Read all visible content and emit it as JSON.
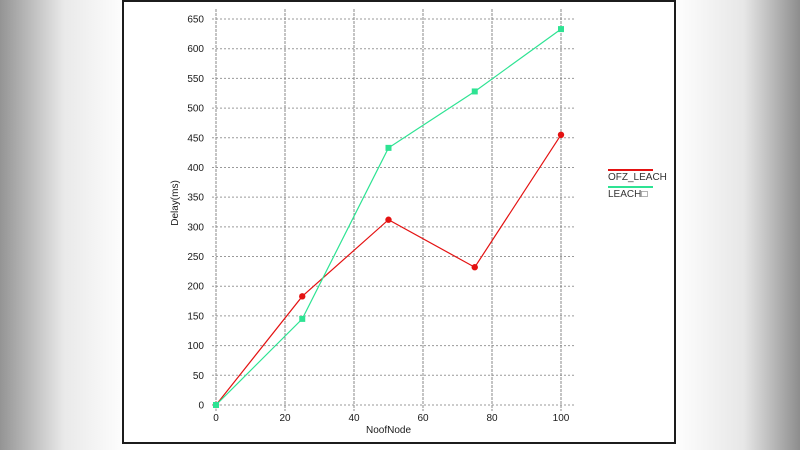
{
  "chart_data": {
    "type": "line",
    "title": "",
    "xlabel": "NoofNode",
    "ylabel": "Delay(ms)",
    "x_ticks": [
      0,
      20,
      40,
      60,
      80,
      100
    ],
    "y_ticks": [
      0,
      50,
      100,
      150,
      200,
      250,
      300,
      350,
      400,
      450,
      500,
      550,
      600,
      650
    ],
    "xlim": [
      0,
      104
    ],
    "ylim": [
      0,
      650
    ],
    "grid": true,
    "legend_position": "right-outside-plot",
    "series": [
      {
        "name": "OFZ_LEACH",
        "color": "#e41212",
        "marker": "circle",
        "x": [
          0,
          25,
          50,
          75,
          100
        ],
        "values": [
          0,
          183,
          312,
          232,
          455
        ]
      },
      {
        "name": "LEACH□",
        "color": "#2ee393",
        "marker": "square",
        "x": [
          0,
          25,
          50,
          75,
          100
        ],
        "values": [
          0,
          145,
          433,
          528,
          633
        ]
      }
    ],
    "colors": {
      "grid_horizontal": "#9a9a9a",
      "grid_vertical": "#8a8a8a",
      "panel_border": "#1c1c1c",
      "tick_text": "#1a1a1a",
      "legend_text": "#333333"
    }
  }
}
